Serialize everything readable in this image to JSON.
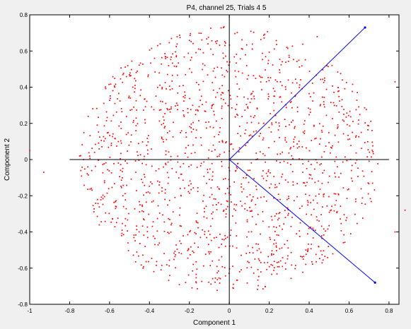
{
  "chart_data": {
    "type": "scatter",
    "title": "P4, channel 25, Trials 4  5",
    "xlabel": "Component 1",
    "ylabel": "Component 2",
    "xlim": [
      -1,
      0.85
    ],
    "ylim": [
      -0.8,
      0.8
    ],
    "x_ticks": [
      -1,
      -0.8,
      -0.6,
      -0.4,
      -0.2,
      0,
      0.2,
      0.4,
      0.6,
      0.8
    ],
    "y_ticks": [
      -0.8,
      -0.6,
      -0.4,
      -0.2,
      0,
      0.2,
      0.4,
      0.6,
      0.8
    ],
    "x_tick_labels": [
      "-1",
      "-0.8",
      "-0.6",
      "-0.4",
      "-0.2",
      "0",
      "0.2",
      "0.4",
      "0.6",
      "0.8"
    ],
    "y_tick_labels": [
      "-0.8",
      "-0.6",
      "-0.4",
      "-0.2",
      "0",
      "0.2",
      "0.4",
      "0.6",
      "0.8"
    ],
    "grid": false,
    "series": [
      {
        "kind": "points",
        "color": "#ff0000",
        "distribution": "roughly circular cloud centered at origin, radius about 0.75, ~1500 points",
        "center": [
          0,
          0
        ],
        "radius": 0.75,
        "count": 1500,
        "outliers": [
          [
            -0.93,
            -0.07
          ],
          [
            -1.0,
            0.05
          ],
          [
            -0.75,
            0.02
          ],
          [
            0.88,
            -0.28
          ],
          [
            0.83,
            0.43
          ],
          [
            0.83,
            -0.4
          ],
          [
            0.44,
            0.68
          ]
        ]
      },
      {
        "kind": "line",
        "color": "#0000ff",
        "points": [
          [
            0,
            0
          ],
          [
            0.68,
            0.73
          ]
        ]
      },
      {
        "kind": "line",
        "color": "#0000ff",
        "points": [
          [
            0,
            0
          ],
          [
            0.73,
            -0.68
          ]
        ]
      },
      {
        "kind": "line",
        "color": "#000000",
        "points": [
          [
            -0.8,
            0
          ],
          [
            0.8,
            0
          ]
        ]
      },
      {
        "kind": "line",
        "color": "#000000",
        "points": [
          [
            0,
            -0.8
          ],
          [
            0,
            0.8
          ]
        ]
      }
    ]
  }
}
